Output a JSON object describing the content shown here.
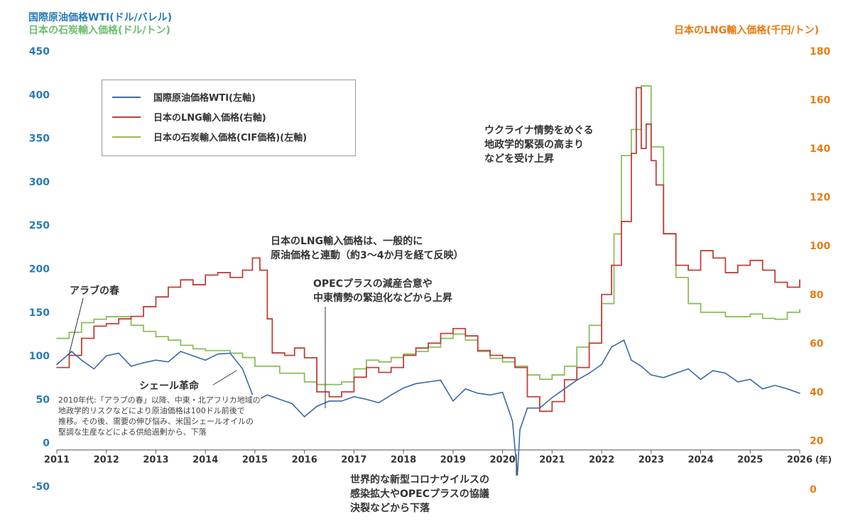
{
  "chart_data": {
    "type": "line",
    "titles": {
      "left_primary": "国際原油価格WTI(ドル/バレル)",
      "left_secondary": "日本の石炭輸入価格(ドル/トン)",
      "right": "日本のLNG輸入価格(千円/トン)"
    },
    "x_unit": "(年)",
    "xlim": [
      2011,
      2026
    ],
    "x_ticks": [
      "2011",
      "2012",
      "2013",
      "2014",
      "2015",
      "2016",
      "2017",
      "2018",
      "2019",
      "2020",
      "2021",
      "2022",
      "2023",
      "2024",
      "2025",
      "2026"
    ],
    "ylim_left": [
      -50,
      450
    ],
    "y_ticks_left": [
      "-50",
      "0",
      "50",
      "100",
      "150",
      "200",
      "250",
      "300",
      "350",
      "400",
      "450"
    ],
    "ylim_right": [
      0,
      180
    ],
    "y_ticks_right": [
      "0",
      "20",
      "40",
      "60",
      "80",
      "100",
      "120",
      "140",
      "160",
      "180"
    ],
    "legend_position": "top-left",
    "colors": {
      "wti": "#3a6aaa",
      "lng": "#c0403a",
      "coal": "#8bbf5a",
      "left_axis": "#2a7ab8",
      "right_axis": "#e87b10",
      "coal_title": "#6cbf6c"
    },
    "series": [
      {
        "name": "国際原油価格WTI(左軸)",
        "axis": "left",
        "key": "wti",
        "x": [
          2011,
          2011.3,
          2011.5,
          2011.75,
          2012,
          2012.25,
          2012.5,
          2012.75,
          2013,
          2013.25,
          2013.5,
          2013.75,
          2014,
          2014.25,
          2014.5,
          2014.75,
          2015,
          2015.25,
          2015.5,
          2015.75,
          2016,
          2016.25,
          2016.5,
          2016.75,
          2017,
          2017.25,
          2017.5,
          2017.75,
          2018,
          2018.25,
          2018.5,
          2018.75,
          2019,
          2019.25,
          2019.5,
          2019.75,
          2020,
          2020.2,
          2020.3,
          2020.35,
          2020.5,
          2020.75,
          2021,
          2021.25,
          2021.5,
          2021.75,
          2022,
          2022.2,
          2022.45,
          2022.6,
          2022.8,
          2023,
          2023.25,
          2023.5,
          2023.75,
          2024,
          2024.25,
          2024.5,
          2024.75,
          2025,
          2025.25,
          2025.5,
          2025.75,
          2026
        ],
        "y": [
          90,
          105,
          95,
          85,
          100,
          103,
          88,
          92,
          95,
          93,
          105,
          100,
          95,
          102,
          103,
          85,
          48,
          55,
          50,
          45,
          30,
          42,
          48,
          48,
          53,
          50,
          46,
          55,
          63,
          68,
          70,
          72,
          48,
          62,
          57,
          55,
          58,
          25,
          -37,
          15,
          40,
          40,
          52,
          62,
          72,
          80,
          90,
          110,
          118,
          95,
          88,
          78,
          75,
          80,
          85,
          73,
          83,
          80,
          70,
          73,
          62,
          66,
          62,
          57
        ]
      },
      {
        "name": "日本のLNG輸入価格(右軸)",
        "axis": "right",
        "key": "lng",
        "x": [
          2011,
          2011.25,
          2011.5,
          2011.75,
          2012,
          2012.25,
          2012.5,
          2012.75,
          2013,
          2013.25,
          2013.5,
          2013.75,
          2014,
          2014.25,
          2014.5,
          2014.75,
          2014.95,
          2015.1,
          2015.25,
          2015.35,
          2015.6,
          2015.8,
          2016,
          2016.25,
          2016.5,
          2016.75,
          2017,
          2017.25,
          2017.5,
          2017.75,
          2018,
          2018.25,
          2018.5,
          2018.75,
          2019,
          2019.25,
          2019.5,
          2019.75,
          2020,
          2020.25,
          2020.5,
          2020.75,
          2021,
          2021.25,
          2021.5,
          2021.75,
          2022,
          2022.2,
          2022.4,
          2022.6,
          2022.7,
          2022.8,
          2022.9,
          2023,
          2023.1,
          2023.25,
          2023.5,
          2023.75,
          2024,
          2024.25,
          2024.5,
          2024.75,
          2025,
          2025.25,
          2025.5,
          2025.75,
          2026
        ],
        "y": [
          50,
          55,
          62,
          67,
          68,
          70,
          71,
          75,
          79,
          83,
          86,
          84,
          88,
          89,
          87,
          90,
          95,
          90,
          70,
          56,
          55,
          58,
          54,
          40,
          38,
          40,
          46,
          50,
          48,
          50,
          55,
          58,
          60,
          64,
          66,
          63,
          57,
          55,
          54,
          50,
          38,
          32,
          36,
          45,
          50,
          60,
          80,
          92,
          110,
          138,
          165,
          140,
          150,
          135,
          125,
          105,
          92,
          90,
          98,
          95,
          89,
          92,
          94,
          90,
          85,
          83,
          86
        ]
      },
      {
        "name": "日本の石炭輸入価格(CIF価格)(左軸)",
        "axis": "left",
        "key": "coal",
        "x": [
          2011,
          2011.25,
          2011.5,
          2011.75,
          2012,
          2012.25,
          2012.5,
          2012.75,
          2013,
          2013.25,
          2013.5,
          2013.75,
          2014,
          2014.5,
          2014.75,
          2015,
          2015.5,
          2016,
          2016.25,
          2016.5,
          2016.75,
          2017,
          2017.25,
          2017.5,
          2017.75,
          2018,
          2018.25,
          2018.5,
          2018.75,
          2019,
          2019.25,
          2019.5,
          2019.75,
          2020,
          2020.25,
          2020.5,
          2020.75,
          2021,
          2021.25,
          2021.5,
          2021.75,
          2022,
          2022.25,
          2022.4,
          2022.6,
          2022.8,
          2023,
          2023.25,
          2023.5,
          2023.75,
          2024,
          2024.25,
          2024.5,
          2024.75,
          2025,
          2025.25,
          2025.5,
          2025.75,
          2026
        ],
        "y": [
          120,
          127,
          138,
          142,
          145,
          145,
          135,
          128,
          122,
          118,
          112,
          108,
          106,
          103,
          98,
          88,
          80,
          70,
          67,
          67,
          70,
          85,
          95,
          93,
          98,
          102,
          105,
          110,
          120,
          125,
          118,
          105,
          97,
          93,
          88,
          78,
          73,
          78,
          88,
          110,
          135,
          160,
          240,
          330,
          360,
          410,
          340,
          240,
          190,
          160,
          150,
          150,
          145,
          145,
          148,
          143,
          142,
          150,
          153
        ]
      }
    ],
    "annotations": {
      "arab_spring": "アラブの春",
      "shale": "シェール革命",
      "note_2010s": "2010年代:「アラブの春」以降、中東・北アフリカ地域の\n地政学的リスクなどにより原油価格は100ドル前後で\n推移。その後、需要の伸び悩み、米国シェールオイルの\n堅調な生産などによる供給過剰から、下落",
      "lng_link": "日本のLNG輸入価格は、一般的に\n原油価格と連動（約3〜4か月を経て反映）",
      "opec": "OPECプラスの減産合意や\n中東情勢の緊迫化などから上昇",
      "covid": "世界的な新型コロナウイルスの\n感染拡大やOPECプラスの協議\n決裂などから下落",
      "ukraine": "ウクライナ情勢をめぐる\n地政学的緊張の高まり\nなどを受け上昇"
    }
  }
}
